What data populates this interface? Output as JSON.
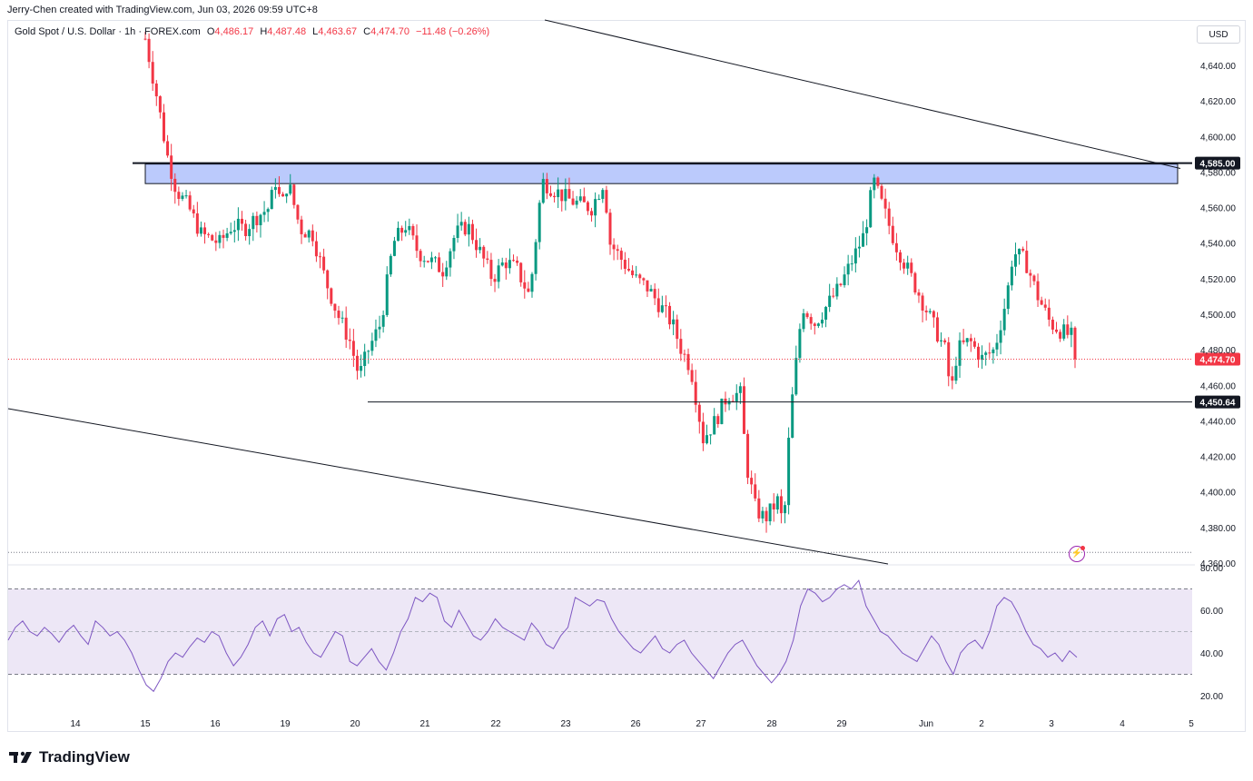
{
  "header": {
    "attribution": "Jerry-Chen created with TradingView.com, Jun 03, 2026 09:59 UTC+8",
    "symbol": "Gold Spot / U.S. Dollar · 1h · FOREX.com",
    "ohlc": [
      {
        "label": "O",
        "value": "4,486.17"
      },
      {
        "label": "H",
        "value": "4,487.48"
      },
      {
        "label": "L",
        "value": "4,463.67"
      },
      {
        "label": "C",
        "value": "4,474.70"
      }
    ],
    "change": "−11.48 (−0.26%)",
    "currency": "USD"
  },
  "footer": {
    "brand": "TradingView"
  },
  "colors": {
    "up": "#089981",
    "down": "#f23645",
    "rsi": "#7e57c2",
    "rsi_band": "#ede7f6",
    "zone": "#bbcafc",
    "line": "#131722"
  },
  "chart_data": [
    {
      "type": "candlestick",
      "title": "Gold Spot / U.S. Dollar",
      "interval": "1h",
      "ylim": [
        4360,
        4660
      ],
      "y_ticks": [
        4360,
        4380,
        4400,
        4420,
        4440,
        4460,
        4480,
        4500,
        4520,
        4540,
        4560,
        4580,
        4600,
        4620,
        4640
      ],
      "y_tick_labels": [
        "4,360.00",
        "4,380.00",
        "4,400.00",
        "4,420.00",
        "4,440.00",
        "4,460.00",
        "4,480.00",
        "4,500.00",
        "4,520.00",
        "4,540.00",
        "4,560.00",
        "4,580.00",
        "4,600.00",
        "4,620.00",
        "4,640.00"
      ],
      "x_tick_labels": [
        "14",
        "15",
        "16",
        "19",
        "20",
        "21",
        "22",
        "23",
        "26",
        "27",
        "28",
        "29",
        "Jun",
        "2",
        "3",
        "4",
        "5"
      ],
      "price_path": [
        [
          15,
          4655
        ],
        [
          15.2,
          4620
        ],
        [
          15.35,
          4590
        ],
        [
          15.5,
          4570
        ],
        [
          15.7,
          4560
        ],
        [
          15.9,
          4545
        ],
        [
          16.2,
          4540
        ],
        [
          16.4,
          4550
        ],
        [
          16.6,
          4548
        ],
        [
          16.8,
          4555
        ],
        [
          17.0,
          4560
        ],
        [
          17.1,
          4575
        ],
        [
          17.2,
          4560
        ],
        [
          17.3,
          4575
        ],
        [
          17.5,
          4548
        ],
        [
          17.7,
          4545
        ],
        [
          17.9,
          4520
        ],
        [
          18.1,
          4500
        ],
        [
          18.3,
          4485
        ],
        [
          18.45,
          4465
        ],
        [
          18.6,
          4480
        ],
        [
          18.8,
          4495
        ],
        [
          19.0,
          4540
        ],
        [
          19.2,
          4550
        ],
        [
          19.4,
          4535
        ],
        [
          19.6,
          4530
        ],
        [
          19.8,
          4525
        ],
        [
          20.0,
          4545
        ],
        [
          20.2,
          4550
        ],
        [
          20.4,
          4535
        ],
        [
          20.6,
          4520
        ],
        [
          20.8,
          4530
        ],
        [
          21.0,
          4525
        ],
        [
          21.2,
          4510
        ],
        [
          21.4,
          4575
        ],
        [
          21.6,
          4570
        ],
        [
          21.8,
          4565
        ],
        [
          22.0,
          4562
        ],
        [
          22.2,
          4560
        ],
        [
          22.4,
          4575
        ],
        [
          22.5,
          4540
        ],
        [
          22.7,
          4530
        ],
        [
          22.9,
          4520
        ],
        [
          23.1,
          4515
        ],
        [
          23.3,
          4505
        ],
        [
          23.5,
          4495
        ],
        [
          23.65,
          4480
        ],
        [
          23.8,
          4470
        ],
        [
          23.9,
          4450
        ],
        [
          24.0,
          4430
        ],
        [
          24.2,
          4440
        ],
        [
          24.4,
          4455
        ],
        [
          24.6,
          4455
        ],
        [
          24.7,
          4415
        ],
        [
          24.85,
          4390
        ],
        [
          25.0,
          4385
        ],
        [
          25.2,
          4395
        ],
        [
          25.3,
          4380
        ],
        [
          25.4,
          4440
        ],
        [
          25.6,
          4505
        ],
        [
          25.8,
          4495
        ],
        [
          26.0,
          4505
        ],
        [
          26.2,
          4515
        ],
        [
          26.4,
          4530
        ],
        [
          26.6,
          4545
        ],
        [
          26.75,
          4575
        ],
        [
          26.9,
          4560
        ],
        [
          27.1,
          4540
        ],
        [
          27.3,
          4525
        ],
        [
          27.5,
          4510
        ],
        [
          27.7,
          4495
        ],
        [
          27.9,
          4480
        ],
        [
          28.0,
          4455
        ],
        [
          28.1,
          4480
        ],
        [
          28.3,
          4485
        ],
        [
          28.5,
          4475
        ],
        [
          28.7,
          4480
        ],
        [
          28.9,
          4510
        ],
        [
          29.0,
          4535
        ],
        [
          29.2,
          4530
        ],
        [
          29.4,
          4510
        ],
        [
          29.6,
          4495
        ],
        [
          29.8,
          4490
        ],
        [
          29.97,
          4487
        ],
        [
          30.0,
          4474.7
        ]
      ],
      "price_path_x_units": "trading day index (15 = label 15, 30 = label 3)",
      "horizontal_levels": [
        {
          "price": 4585.0,
          "label": "4,585.00"
        },
        {
          "price": 4450.64,
          "label": "4,450.64"
        }
      ],
      "zone": {
        "from": 4574,
        "to": 4585
      },
      "last_price": {
        "price": 4474.7,
        "label": "4,474.70"
      },
      "low_dotted_level": 4366
    },
    {
      "type": "line",
      "title": "RSI",
      "ylim": [
        15,
        80
      ],
      "y_ticks": [
        20,
        40,
        60,
        80
      ],
      "y_tick_labels": [
        "20.00",
        "40.00",
        "60.00",
        "80.00"
      ],
      "band": [
        30,
        70
      ],
      "midline": 50,
      "values": [
        46,
        52,
        55,
        50,
        48,
        52,
        49,
        45,
        50,
        53,
        48,
        44,
        55,
        52,
        48,
        50,
        46,
        40,
        32,
        25,
        22,
        28,
        36,
        40,
        38,
        43,
        47,
        45,
        50,
        48,
        40,
        34,
        38,
        44,
        52,
        55,
        48,
        56,
        58,
        50,
        52,
        45,
        40,
        38,
        44,
        50,
        48,
        36,
        34,
        38,
        42,
        36,
        32,
        40,
        50,
        56,
        66,
        64,
        68,
        66,
        55,
        52,
        60,
        54,
        48,
        46,
        50,
        56,
        52,
        50,
        48,
        46,
        54,
        50,
        44,
        42,
        48,
        52,
        66,
        64,
        62,
        65,
        64,
        56,
        50,
        46,
        42,
        40,
        44,
        48,
        42,
        40,
        44,
        46,
        40,
        36,
        32,
        28,
        34,
        40,
        44,
        46,
        40,
        34,
        30,
        26,
        30,
        36,
        46,
        62,
        70,
        68,
        64,
        66,
        70,
        72,
        70,
        74,
        62,
        56,
        50,
        48,
        44,
        40,
        38,
        36,
        42,
        48,
        44,
        36,
        30,
        40,
        44,
        46,
        42,
        50,
        62,
        66,
        64,
        58,
        50,
        44,
        42,
        38,
        40,
        36,
        41,
        38
      ]
    }
  ]
}
